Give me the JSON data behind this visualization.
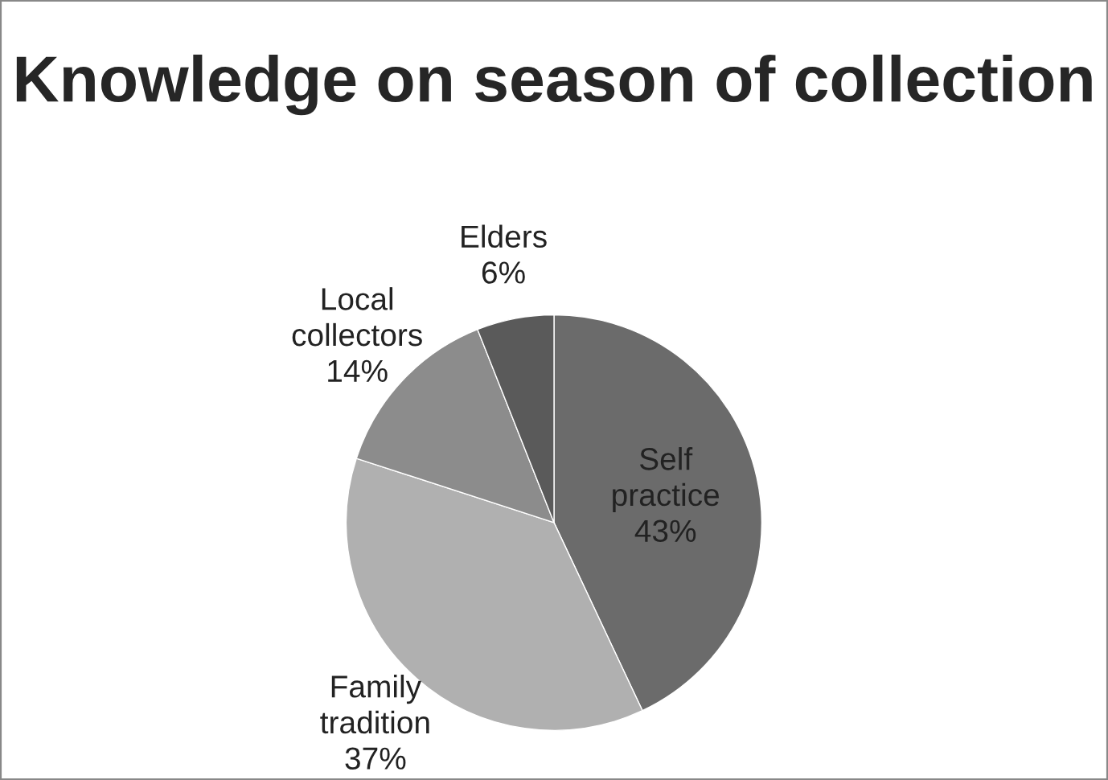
{
  "chart_data": {
    "type": "pie",
    "title": "Knowledge on season of collection",
    "categories": [
      "Self practice",
      "Family tradition",
      "Local collectors",
      "Elders"
    ],
    "values": [
      43,
      37,
      14,
      6
    ],
    "colors": [
      "#6b6b6b",
      "#b0b0b0",
      "#8c8c8c",
      "#5a5a5a"
    ],
    "value_labels": [
      "43%",
      "37%",
      "14%",
      "6%"
    ],
    "legend": false
  }
}
